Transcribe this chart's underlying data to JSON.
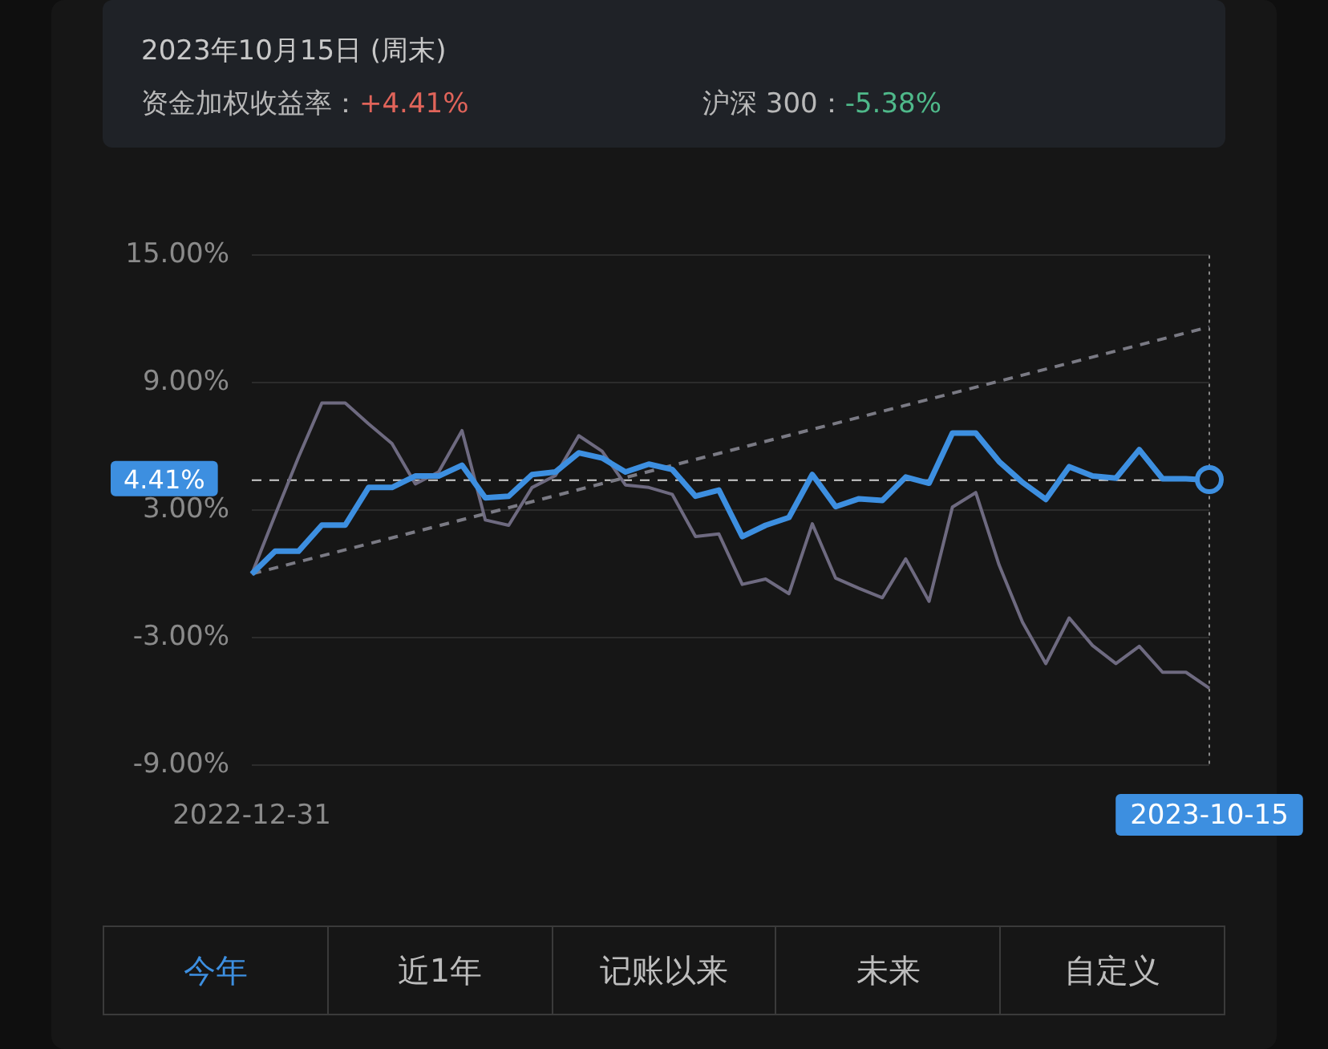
{
  "chart_data": {
    "type": "line",
    "title": "2023年10月15日 (周末)",
    "annotations": [
      "资金加权收益率：+4.41%",
      "沪深 300：-5.38%",
      "今年",
      "近1年",
      "记账以来",
      "未来",
      "自定义"
    ],
    "categories": [
      "2022-12-31",
      null,
      null,
      null,
      null,
      null,
      null,
      null,
      null,
      null,
      null,
      null,
      null,
      null,
      null,
      null,
      null,
      null,
      null,
      null,
      null,
      null,
      null,
      null,
      null,
      null,
      null,
      null,
      null,
      null,
      null,
      null,
      null,
      null,
      null,
      null,
      null,
      null,
      null,
      null,
      null,
      "2023-10-15"
    ],
    "series": [
      {
        "color": "#6e6a80",
        "values": [
          0,
          2.78,
          5.5,
          8.05,
          8.05,
          7.07,
          6.14,
          4.24,
          4.8,
          6.75,
          2.54,
          2.29,
          4.07,
          4.63,
          6.51,
          5.78,
          4.19,
          4.07,
          3.75,
          1.76,
          1.88,
          -0.49,
          -0.24,
          -0.93,
          2.36,
          -0.2,
          -0.68,
          -1.12,
          0.71,
          -1.29,
          3.15,
          3.83,
          0.42,
          -2.27,
          -4.22,
          -2.07,
          -3.37,
          -4.22,
          -3.41,
          -4.63,
          -4.63,
          -5.38
        ]
      },
      {
        "color": "#7a7a84",
        "line_style": "dashed",
        "values": [
          0,
          null,
          null,
          null,
          null,
          null,
          null,
          null,
          null,
          null,
          null,
          null,
          null,
          null,
          null,
          null,
          null,
          null,
          null,
          null,
          null,
          null,
          null,
          null,
          null,
          null,
          null,
          null,
          null,
          null,
          null,
          null,
          null,
          null,
          null,
          null,
          null,
          null,
          null,
          null,
          null,
          11.63
        ]
      },
      {
        "color": "#3d8fe0",
        "values": [
          0,
          1.07,
          1.07,
          2.3,
          2.3,
          4.07,
          4.07,
          4.61,
          4.61,
          5.12,
          3.58,
          3.66,
          4.68,
          4.8,
          5.7,
          5.46,
          4.8,
          5.17,
          4.92,
          3.66,
          3.95,
          1.76,
          2.29,
          2.66,
          4.68,
          3.17,
          3.54,
          3.46,
          4.56,
          4.27,
          6.63,
          6.63,
          5.29,
          4.31,
          3.51,
          5.05,
          4.61,
          4.51,
          5.85,
          4.48,
          4.48,
          4.41
        ]
      }
    ],
    "ylim": [
      -9,
      15
    ],
    "yticks": [
      {
        "value": 15,
        "label": "15.00%"
      },
      {
        "value": 9,
        "label": "9.00%"
      },
      {
        "value": 3,
        "label": "3.00%"
      },
      {
        "value": -3,
        "label": "-3.00%"
      },
      {
        "value": -9,
        "label": "-9.00%"
      }
    ],
    "grid": "y",
    "legend": false,
    "marker": "none",
    "ref_lines": [
      {
        "axis": "y",
        "value": 4.41,
        "label": "4.41%",
        "color": "#cfcfcf",
        "line_style": "dashed"
      },
      {
        "axis": "x",
        "value": "2023-10-15",
        "color": "#8a8a8a",
        "line_style": "dotted"
      }
    ]
  }
}
